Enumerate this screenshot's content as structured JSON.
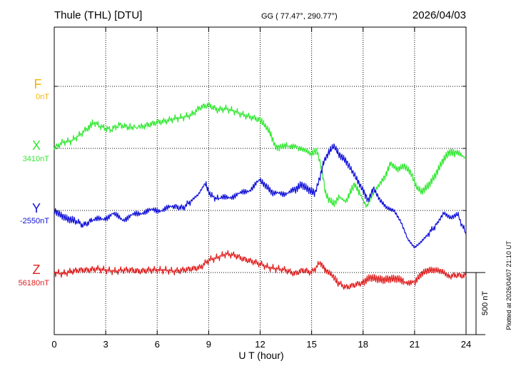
{
  "header": {
    "station": "Thule (THL)  [DTU]",
    "coords": "GG ( 77.47°, 290.77°)",
    "date": "2026/04/03"
  },
  "footer": {
    "plotted": "Plotted at 2026/04/07 21:10 UT"
  },
  "colors": {
    "F": "#f2b600",
    "X": "#33e833",
    "Y": "#1010d8",
    "Z": "#e02020"
  },
  "chart_data": {
    "type": "line",
    "xlabel": "U T (hour)",
    "xlim": [
      0,
      24
    ],
    "x_ticks": [
      "0",
      "3",
      "6",
      "9",
      "12",
      "15",
      "18",
      "21",
      "24"
    ],
    "scale_bar": "500 nT",
    "grid": true,
    "series": [
      {
        "name": "F",
        "baseline": "0nT",
        "points": []
      },
      {
        "name": "X",
        "baseline": "3410nT",
        "points": [
          [
            0,
            3410
          ],
          [
            0.5,
            3460
          ],
          [
            1.0,
            3470
          ],
          [
            1.5,
            3520
          ],
          [
            2.0,
            3580
          ],
          [
            2.3,
            3620
          ],
          [
            2.8,
            3580
          ],
          [
            3.3,
            3560
          ],
          [
            3.8,
            3600
          ],
          [
            4.3,
            3580
          ],
          [
            5.0,
            3580
          ],
          [
            5.5,
            3600
          ],
          [
            6.0,
            3620
          ],
          [
            6.5,
            3630
          ],
          [
            7.0,
            3650
          ],
          [
            7.5,
            3660
          ],
          [
            8.0,
            3680
          ],
          [
            8.5,
            3740
          ],
          [
            9.0,
            3760
          ],
          [
            9.5,
            3720
          ],
          [
            10.0,
            3730
          ],
          [
            10.5,
            3710
          ],
          [
            11.0,
            3680
          ],
          [
            11.5,
            3660
          ],
          [
            12.0,
            3640
          ],
          [
            12.3,
            3590
          ],
          [
            12.6,
            3530
          ],
          [
            12.9,
            3420
          ],
          [
            13.2,
            3420
          ],
          [
            13.6,
            3440
          ],
          [
            14.2,
            3410
          ],
          [
            14.6,
            3400
          ],
          [
            15.0,
            3360
          ],
          [
            15.3,
            3400
          ],
          [
            15.6,
            3240
          ],
          [
            15.8,
            3050
          ],
          [
            16.0,
            3000
          ],
          [
            16.3,
            2960
          ],
          [
            16.6,
            3020
          ],
          [
            17.0,
            2980
          ],
          [
            17.3,
            3070
          ],
          [
            17.5,
            3120
          ],
          [
            17.8,
            3050
          ],
          [
            18.2,
            2940
          ],
          [
            18.6,
            3050
          ],
          [
            19.0,
            3130
          ],
          [
            19.3,
            3190
          ],
          [
            19.6,
            3290
          ],
          [
            20.0,
            3240
          ],
          [
            20.4,
            3270
          ],
          [
            20.8,
            3210
          ],
          [
            21.1,
            3100
          ],
          [
            21.4,
            3060
          ],
          [
            21.8,
            3110
          ],
          [
            22.2,
            3190
          ],
          [
            22.6,
            3300
          ],
          [
            23.0,
            3380
          ],
          [
            23.4,
            3370
          ],
          [
            24.0,
            3340
          ]
        ]
      },
      {
        "name": "Y",
        "baseline": "-2550nT",
        "points": [
          [
            0,
            -2550
          ],
          [
            0.4,
            -2590
          ],
          [
            0.8,
            -2620
          ],
          [
            1.2,
            -2630
          ],
          [
            1.7,
            -2670
          ],
          [
            2.2,
            -2630
          ],
          [
            2.8,
            -2620
          ],
          [
            3.4,
            -2580
          ],
          [
            4.0,
            -2620
          ],
          [
            4.6,
            -2590
          ],
          [
            5.2,
            -2560
          ],
          [
            5.8,
            -2550
          ],
          [
            6.4,
            -2540
          ],
          [
            7.0,
            -2520
          ],
          [
            7.5,
            -2530
          ],
          [
            8.0,
            -2470
          ],
          [
            8.4,
            -2420
          ],
          [
            8.8,
            -2330
          ],
          [
            9.1,
            -2430
          ],
          [
            9.6,
            -2460
          ],
          [
            10.2,
            -2440
          ],
          [
            10.8,
            -2420
          ],
          [
            11.4,
            -2380
          ],
          [
            12.0,
            -2310
          ],
          [
            12.4,
            -2360
          ],
          [
            12.8,
            -2420
          ],
          [
            13.4,
            -2410
          ],
          [
            14.0,
            -2390
          ],
          [
            14.4,
            -2340
          ],
          [
            14.8,
            -2380
          ],
          [
            15.2,
            -2410
          ],
          [
            15.5,
            -2280
          ],
          [
            15.7,
            -2160
          ],
          [
            16.0,
            -2080
          ],
          [
            16.3,
            -2030
          ],
          [
            16.6,
            -2100
          ],
          [
            17.0,
            -2150
          ],
          [
            17.3,
            -2220
          ],
          [
            17.6,
            -2290
          ],
          [
            18.0,
            -2390
          ],
          [
            18.3,
            -2470
          ],
          [
            18.6,
            -2370
          ],
          [
            19.0,
            -2470
          ],
          [
            19.4,
            -2530
          ],
          [
            19.8,
            -2550
          ],
          [
            20.2,
            -2640
          ],
          [
            20.6,
            -2780
          ],
          [
            21.0,
            -2850
          ],
          [
            21.4,
            -2800
          ],
          [
            21.8,
            -2740
          ],
          [
            22.3,
            -2660
          ],
          [
            22.7,
            -2570
          ],
          [
            23.1,
            -2610
          ],
          [
            23.5,
            -2580
          ],
          [
            24.0,
            -2740
          ]
        ]
      },
      {
        "name": "Z",
        "baseline": "56180nT",
        "points": [
          [
            0,
            56180
          ],
          [
            0.5,
            56170
          ],
          [
            1.0,
            56190
          ],
          [
            1.5,
            56200
          ],
          [
            2.0,
            56200
          ],
          [
            2.5,
            56210
          ],
          [
            3.0,
            56200
          ],
          [
            3.5,
            56190
          ],
          [
            4.0,
            56200
          ],
          [
            4.5,
            56200
          ],
          [
            5.0,
            56190
          ],
          [
            5.5,
            56200
          ],
          [
            6.0,
            56200
          ],
          [
            6.5,
            56200
          ],
          [
            7.0,
            56190
          ],
          [
            7.5,
            56200
          ],
          [
            8.0,
            56210
          ],
          [
            8.5,
            56220
          ],
          [
            9.0,
            56280
          ],
          [
            9.5,
            56300
          ],
          [
            10.0,
            56330
          ],
          [
            10.5,
            56320
          ],
          [
            11.0,
            56290
          ],
          [
            11.5,
            56270
          ],
          [
            12.0,
            56250
          ],
          [
            12.5,
            56220
          ],
          [
            13.0,
            56210
          ],
          [
            13.5,
            56200
          ],
          [
            14.0,
            56170
          ],
          [
            14.5,
            56200
          ],
          [
            15.0,
            56180
          ],
          [
            15.5,
            56260
          ],
          [
            15.8,
            56200
          ],
          [
            16.2,
            56160
          ],
          [
            16.5,
            56100
          ],
          [
            17.0,
            56060
          ],
          [
            17.5,
            56080
          ],
          [
            18.0,
            56100
          ],
          [
            18.4,
            56140
          ],
          [
            18.8,
            56130
          ],
          [
            19.2,
            56120
          ],
          [
            19.6,
            56130
          ],
          [
            20.0,
            56130
          ],
          [
            20.4,
            56110
          ],
          [
            21.0,
            56100
          ],
          [
            21.4,
            56170
          ],
          [
            21.8,
            56200
          ],
          [
            22.2,
            56200
          ],
          [
            22.6,
            56190
          ],
          [
            23.0,
            56150
          ],
          [
            23.5,
            56160
          ],
          [
            24.0,
            56150
          ]
        ]
      }
    ]
  }
}
